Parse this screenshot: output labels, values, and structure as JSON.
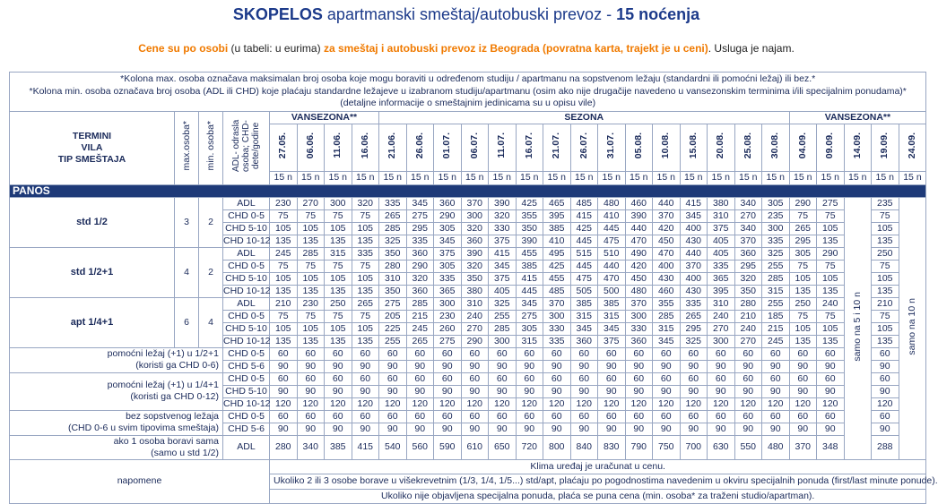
{
  "header": {
    "title_bold": "SKOPELOS",
    "title_mid": " apartmanski smeštaj/autobuski prevoz - ",
    "title_bold2": "15 noćenja",
    "sub_1": "Cene su po osobi",
    "sub_2": " (u tabeli: u eurima) ",
    "sub_3": "za smeštaj i autobuski prevoz iz Beograda (povratna karta, trajekt je u ceni)",
    "sub_4": ". Usluga je najam."
  },
  "notes_top": [
    "*Kolona max. osoba označava maksimalan broj osoba koje mogu boraviti u određenom studiju / apartmanu na sopstvenom ležaju (standardni ili pomoćni ležaj) ili bez.*",
    "*Kolona min. osoba označava broj osoba (ADL ili CHD) koje plaćaju standardne ležajeve u izabranom studiju/apartmanu (osim ako nije drugačije navedeno u vansezonskim terminima i/ili specijalnim ponudama)*",
    "(detaljne informacije o smeštajnim jedinicama su u opisu vile)"
  ],
  "columns": {
    "termini": "TERMINI",
    "vila": "VILA",
    "tip": "TIP SMEŠTAJA",
    "max": "max.osoba*",
    "min": "min. osoba*",
    "age": "ADL- odrasla osoba; CHD- dete/godine",
    "vansezona1": "VANSEZONA**",
    "sezona": "SEZONA",
    "vansezona2": "VANSEZONA**",
    "dates": [
      "27.05.",
      "06.06.",
      "11.06.",
      "16.06.",
      "21.06.",
      "26.06.",
      "01.07.",
      "06.07.",
      "11.07.",
      "16.07.",
      "21.07.",
      "26.07.",
      "31.07.",
      "05.08.",
      "10.08.",
      "15.08.",
      "20.08.",
      "25.08.",
      "30.08.",
      "04.09.",
      "09.09.",
      "14.09.",
      "19.09.",
      "24.09."
    ],
    "nights": "15 n"
  },
  "section": "PANOS",
  "groups": [
    {
      "name": "std 1/2",
      "max": "3",
      "min": "2",
      "rows": [
        {
          "label": "ADL",
          "v": [
            "230",
            "270",
            "300",
            "320",
            "335",
            "345",
            "360",
            "370",
            "390",
            "425",
            "465",
            "485",
            "480",
            "460",
            "440",
            "415",
            "380",
            "340",
            "305",
            "290",
            "275",
            "",
            "235"
          ]
        },
        {
          "label": "CHD 0-5",
          "v": [
            "75",
            "75",
            "75",
            "75",
            "265",
            "275",
            "290",
            "300",
            "320",
            "355",
            "395",
            "415",
            "410",
            "390",
            "370",
            "345",
            "310",
            "270",
            "235",
            "75",
            "75",
            "",
            "75"
          ]
        },
        {
          "label": "CHD 5-10",
          "v": [
            "105",
            "105",
            "105",
            "105",
            "285",
            "295",
            "305",
            "320",
            "330",
            "350",
            "385",
            "425",
            "445",
            "440",
            "420",
            "400",
            "375",
            "340",
            "300",
            "265",
            "105",
            "",
            "105"
          ]
        },
        {
          "label": "CHD 10-12",
          "v": [
            "135",
            "135",
            "135",
            "135",
            "325",
            "335",
            "345",
            "360",
            "375",
            "390",
            "410",
            "445",
            "475",
            "470",
            "450",
            "430",
            "405",
            "370",
            "335",
            "295",
            "135",
            "",
            "135"
          ]
        }
      ]
    },
    {
      "name": "std 1/2+1",
      "max": "4",
      "min": "2",
      "rows": [
        {
          "label": "ADL",
          "v": [
            "245",
            "285",
            "315",
            "335",
            "350",
            "360",
            "375",
            "390",
            "415",
            "455",
            "495",
            "515",
            "510",
            "490",
            "470",
            "440",
            "405",
            "360",
            "325",
            "305",
            "290",
            "",
            "250"
          ]
        },
        {
          "label": "CHD 0-5",
          "v": [
            "75",
            "75",
            "75",
            "75",
            "280",
            "290",
            "305",
            "320",
            "345",
            "385",
            "425",
            "445",
            "440",
            "420",
            "400",
            "370",
            "335",
            "295",
            "255",
            "75",
            "75",
            "",
            "75"
          ]
        },
        {
          "label": "CHD 5-10",
          "v": [
            "105",
            "105",
            "105",
            "105",
            "310",
            "320",
            "335",
            "350",
            "375",
            "415",
            "455",
            "475",
            "470",
            "450",
            "430",
            "400",
            "365",
            "320",
            "285",
            "105",
            "105",
            "",
            "105"
          ]
        },
        {
          "label": "CHD 10-12",
          "v": [
            "135",
            "135",
            "135",
            "135",
            "350",
            "360",
            "365",
            "380",
            "405",
            "445",
            "485",
            "505",
            "500",
            "480",
            "460",
            "430",
            "395",
            "350",
            "315",
            "135",
            "135",
            "",
            "135"
          ]
        }
      ]
    },
    {
      "name": "apt 1/4+1",
      "max": "6",
      "min": "4",
      "rows": [
        {
          "label": "ADL",
          "v": [
            "210",
            "230",
            "250",
            "265",
            "275",
            "285",
            "300",
            "310",
            "325",
            "345",
            "370",
            "385",
            "385",
            "370",
            "355",
            "335",
            "310",
            "280",
            "255",
            "250",
            "240",
            "",
            "210"
          ]
        },
        {
          "label": "CHD 0-5",
          "v": [
            "75",
            "75",
            "75",
            "75",
            "205",
            "215",
            "230",
            "240",
            "255",
            "275",
            "300",
            "315",
            "315",
            "300",
            "285",
            "265",
            "240",
            "210",
            "185",
            "75",
            "75",
            "",
            "75"
          ]
        },
        {
          "label": "CHD 5-10",
          "v": [
            "105",
            "105",
            "105",
            "105",
            "225",
            "245",
            "260",
            "270",
            "285",
            "305",
            "330",
            "345",
            "345",
            "330",
            "315",
            "295",
            "270",
            "240",
            "215",
            "105",
            "105",
            "",
            "105"
          ]
        },
        {
          "label": "CHD 10-12",
          "v": [
            "135",
            "135",
            "135",
            "135",
            "255",
            "265",
            "275",
            "290",
            "300",
            "315",
            "335",
            "360",
            "375",
            "360",
            "345",
            "325",
            "300",
            "270",
            "245",
            "135",
            "135",
            "",
            "135"
          ]
        }
      ]
    }
  ],
  "extras": [
    {
      "label": [
        "pomoćni ležaj (+1) u 1/2+1",
        "(koristi ga CHD 0-6)"
      ],
      "rows": [
        {
          "label": "CHD 0-5",
          "v": "60"
        },
        {
          "label": "CHD 5-6",
          "v": "90"
        }
      ]
    },
    {
      "label": [
        "pomoćni ležaj (+1) u 1/4+1",
        "(koristi ga CHD 0-12)"
      ],
      "rows": [
        {
          "label": "CHD 0-5",
          "v": "60"
        },
        {
          "label": "CHD 5-10",
          "v": "90"
        },
        {
          "label": "CHD 10-12",
          "v": "120"
        }
      ]
    },
    {
      "label": [
        "bez sopstvenog ležaja",
        "(CHD 0-6 u svim tipovima smeštaja)"
      ],
      "rows": [
        {
          "label": "CHD 0-5",
          "v": "60"
        },
        {
          "label": "CHD 5-6",
          "v": "90"
        }
      ]
    }
  ],
  "single": {
    "label": [
      "ako 1 osoba boravi sama",
      "(samo u std 1/2)"
    ],
    "age": "ADL",
    "v": [
      "280",
      "340",
      "385",
      "415",
      "540",
      "560",
      "590",
      "610",
      "650",
      "720",
      "800",
      "840",
      "830",
      "790",
      "750",
      "700",
      "630",
      "550",
      "480",
      "370",
      "348",
      "",
      "288"
    ]
  },
  "vertical_notes": {
    "col14": "samo na 5 i 10 n",
    "col24": "samo na 10 n"
  },
  "napomene": {
    "label": "napomene",
    "lines": [
      "Klima uređaj je uračunat u cenu.",
      "Ukoliko 2 ili 3 osobe borave u višekrevetnim (1/3, 1/4, 1/5...) std/apt, plaćaju po pogodnostima navedenim u okviru specijalnih ponuda (first/last minute ponude).",
      "Ukoliko nije objavljena specijalna ponuda, plaća se puna cena (min. osoba* za traženi studio/apartman)."
    ]
  },
  "colors": {
    "accent": "#1c3a8a",
    "orange": "#f07a00",
    "section_bg": "#1e3a78"
  }
}
